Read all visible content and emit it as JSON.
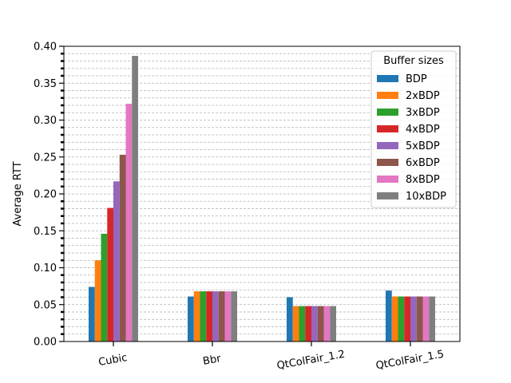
{
  "chart_data": {
    "type": "bar",
    "title": "",
    "xlabel": "",
    "ylabel": "Average RTT",
    "ylim": [
      0,
      0.4
    ],
    "yticks": [
      "0.00",
      "0.05",
      "0.10",
      "0.15",
      "0.20",
      "0.25",
      "0.30",
      "0.35",
      "0.40"
    ],
    "grid": "horizontal dashed, major and minor",
    "categories": [
      "Cubic",
      "Bbr",
      "QtColFair_1.2",
      "QtColFair_1.5"
    ],
    "legend": {
      "title": "Buffer sizes",
      "placement": "top-right"
    },
    "series": [
      {
        "name": "BDP",
        "color": "#1f77b4",
        "values": [
          0.074,
          0.061,
          0.06,
          0.069
        ]
      },
      {
        "name": "2xBDP",
        "color": "#ff7f0e",
        "values": [
          0.11,
          0.068,
          0.048,
          0.061
        ]
      },
      {
        "name": "3xBDP",
        "color": "#2ca02c",
        "values": [
          0.146,
          0.068,
          0.048,
          0.061
        ]
      },
      {
        "name": "4xBDP",
        "color": "#d62728",
        "values": [
          0.181,
          0.068,
          0.048,
          0.061
        ]
      },
      {
        "name": "5xBDP",
        "color": "#9467bd",
        "values": [
          0.217,
          0.068,
          0.048,
          0.061
        ]
      },
      {
        "name": "6xBDP",
        "color": "#8c564b",
        "values": [
          0.253,
          0.068,
          0.048,
          0.061
        ]
      },
      {
        "name": "8xBDP",
        "color": "#e377c2",
        "values": [
          0.322,
          0.068,
          0.048,
          0.061
        ]
      },
      {
        "name": "10xBDP",
        "color": "#7f7f7f",
        "values": [
          0.387,
          0.068,
          0.048,
          0.061
        ]
      }
    ]
  }
}
